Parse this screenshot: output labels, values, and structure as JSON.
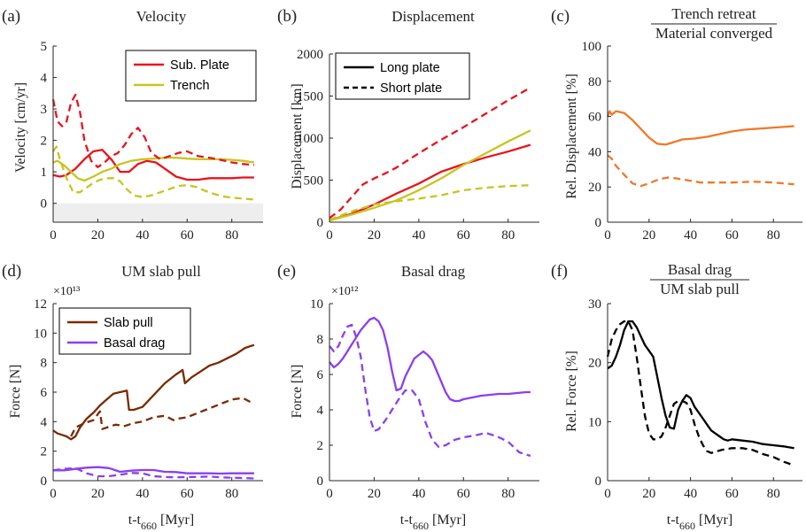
{
  "colors": {
    "red": "#e8141c",
    "yellow": "#c8c420",
    "orange": "#f07828",
    "brown": "#7a2a00",
    "purple": "#8a3ff0",
    "black": "#000000",
    "axis": "#262626",
    "shade": "#eeeeee"
  },
  "shared": {
    "xlabel_main": "t-t",
    "xlabel_sub": "660",
    "xlabel_unit": " [Myr]"
  },
  "chart_data": [
    {
      "panel": "(a)",
      "type": "line",
      "title": "Velocity",
      "ylabel": "Velocity [cm/yr]",
      "xlim": [
        0,
        94
      ],
      "ylim": [
        -0.6,
        5
      ],
      "xticks": [
        0,
        20,
        40,
        60,
        80
      ],
      "yticks": [
        0,
        1,
        2,
        3,
        4,
        5
      ],
      "shaded_region": [
        -0.6,
        0
      ],
      "legend": {
        "position": "top-right",
        "entries": [
          {
            "label": "Sub. Plate",
            "color": "red",
            "dash": "solid"
          },
          {
            "label": "Trench",
            "color": "yellow",
            "dash": "solid"
          }
        ]
      },
      "series": [
        {
          "color": "red",
          "dash": "solid",
          "x": [
            0,
            3,
            6,
            10,
            14,
            18,
            22,
            26,
            30,
            34,
            38,
            42,
            46,
            50,
            55,
            60,
            65,
            70,
            75,
            80,
            85,
            90
          ],
          "y": [
            0.9,
            0.85,
            0.9,
            1.1,
            1.4,
            1.65,
            1.7,
            1.4,
            1.0,
            1.0,
            1.25,
            1.35,
            1.3,
            1.1,
            0.85,
            0.75,
            0.75,
            0.8,
            0.8,
            0.8,
            0.82,
            0.82
          ]
        },
        {
          "color": "yellow",
          "dash": "solid",
          "x": [
            0,
            2,
            5,
            8,
            11,
            14,
            18,
            22,
            26,
            30,
            35,
            40,
            45,
            50,
            55,
            60,
            65,
            70,
            75,
            80,
            85,
            90
          ],
          "y": [
            1.3,
            1.35,
            1.2,
            1.0,
            0.8,
            0.72,
            0.85,
            1.0,
            1.1,
            1.25,
            1.35,
            1.4,
            1.42,
            1.45,
            1.45,
            1.42,
            1.4,
            1.4,
            1.4,
            1.38,
            1.35,
            1.3
          ]
        },
        {
          "color": "red",
          "dash": "dashed",
          "x": [
            0,
            2,
            4,
            6,
            8,
            10,
            12,
            14,
            17,
            20,
            23,
            26,
            29,
            32,
            35,
            38,
            41,
            44,
            48,
            52,
            56,
            60,
            65,
            70,
            75,
            80,
            85,
            90
          ],
          "y": [
            3.3,
            2.6,
            2.45,
            2.6,
            3.2,
            3.45,
            2.9,
            2.0,
            1.35,
            1.15,
            1.3,
            1.5,
            1.6,
            1.85,
            2.2,
            2.4,
            2.1,
            1.6,
            1.4,
            1.5,
            1.6,
            1.65,
            1.5,
            1.45,
            1.38,
            1.3,
            1.25,
            1.22
          ]
        },
        {
          "color": "yellow",
          "dash": "dashed",
          "x": [
            0,
            1.5,
            3,
            6,
            9,
            12,
            15,
            18,
            21,
            24,
            27,
            30,
            33,
            36,
            40,
            44,
            48,
            52,
            56,
            60,
            64,
            68,
            72,
            76,
            80,
            85,
            90
          ],
          "y": [
            1.65,
            1.8,
            1.4,
            0.8,
            0.35,
            0.35,
            0.5,
            0.65,
            0.75,
            0.8,
            0.8,
            0.7,
            0.45,
            0.25,
            0.2,
            0.25,
            0.35,
            0.45,
            0.55,
            0.58,
            0.52,
            0.4,
            0.3,
            0.22,
            0.18,
            0.15,
            0.12
          ]
        }
      ]
    },
    {
      "panel": "(b)",
      "type": "line",
      "title": "Displacement",
      "ylabel": "Displacement [km]",
      "xlim": [
        0,
        94
      ],
      "ylim": [
        0,
        2000
      ],
      "xticks": [
        0,
        20,
        40,
        60,
        80
      ],
      "yticks": [
        0,
        500,
        1000,
        1500,
        2000
      ],
      "legend": {
        "position": "top-left",
        "entries": [
          {
            "label": "Long plate",
            "color": "black",
            "dash": "solid"
          },
          {
            "label": "Short plate",
            "color": "black",
            "dash": "dashed"
          }
        ]
      },
      "series": [
        {
          "color": "red",
          "dash": "solid",
          "x": [
            0,
            10,
            20,
            30,
            40,
            50,
            60,
            70,
            80,
            90
          ],
          "y": [
            20,
            100,
            210,
            340,
            460,
            600,
            690,
            770,
            840,
            920
          ]
        },
        {
          "color": "yellow",
          "dash": "solid",
          "x": [
            0,
            10,
            20,
            30,
            40,
            50,
            60,
            70,
            80,
            90
          ],
          "y": [
            20,
            90,
            170,
            260,
            380,
            520,
            680,
            820,
            960,
            1090
          ]
        },
        {
          "color": "red",
          "dash": "dashed",
          "x": [
            0,
            5,
            10,
            15,
            20,
            25,
            30,
            40,
            50,
            60,
            70,
            80,
            90
          ],
          "y": [
            50,
            150,
            300,
            450,
            520,
            580,
            650,
            820,
            980,
            1130,
            1290,
            1450,
            1600
          ]
        },
        {
          "color": "yellow",
          "dash": "dashed",
          "x": [
            0,
            5,
            10,
            15,
            20,
            30,
            40,
            50,
            60,
            70,
            80,
            90
          ],
          "y": [
            30,
            80,
            130,
            170,
            210,
            250,
            280,
            320,
            380,
            410,
            430,
            440
          ]
        }
      ]
    },
    {
      "panel": "(c)",
      "type": "line",
      "title_num": "Trench retreat",
      "title_den": "Material converged",
      "ylabel": "Rel. Displacement [%]",
      "xlim": [
        0,
        94
      ],
      "ylim": [
        0,
        100
      ],
      "xticks": [
        0,
        20,
        40,
        60,
        80
      ],
      "yticks": [
        0,
        20,
        40,
        60,
        80,
        100
      ],
      "series": [
        {
          "color": "orange",
          "dash": "solid",
          "x": [
            0,
            1,
            2,
            4,
            8,
            12,
            16,
            20,
            24,
            28,
            32,
            36,
            42,
            48,
            54,
            60,
            66,
            72,
            78,
            84,
            90
          ],
          "y": [
            60,
            63,
            61,
            63,
            62,
            58,
            53,
            48,
            44.5,
            44,
            45.5,
            47,
            47.5,
            48.5,
            50,
            51.5,
            52.5,
            53,
            53.5,
            54,
            54.5
          ]
        },
        {
          "color": "orange",
          "dash": "dashed",
          "x": [
            0,
            2,
            4,
            8,
            12,
            16,
            20,
            25,
            30,
            35,
            40,
            45,
            50,
            60,
            70,
            80,
            90
          ],
          "y": [
            38,
            36,
            32,
            27,
            22,
            20.5,
            22,
            24.5,
            25.5,
            24.5,
            23.5,
            22.5,
            22.5,
            22.5,
            23,
            22.5,
            21.5
          ]
        }
      ]
    },
    {
      "panel": "(d)",
      "type": "line",
      "title": "UM slab pull",
      "scale_label": "×10¹³",
      "ylabel": "Force [N]",
      "xlim": [
        0,
        94
      ],
      "ylim": [
        0,
        12
      ],
      "xticks": [
        0,
        20,
        40,
        60,
        80
      ],
      "yticks": [
        0,
        2,
        4,
        6,
        8,
        10,
        12
      ],
      "legend": {
        "position": "top-left",
        "entries": [
          {
            "label": "Slab pull",
            "color": "brown",
            "dash": "solid"
          },
          {
            "label": "Basal drag",
            "color": "purple",
            "dash": "solid"
          }
        ]
      },
      "series": [
        {
          "color": "brown",
          "dash": "solid",
          "x": [
            0,
            2,
            4,
            6,
            8,
            10,
            12,
            15,
            18,
            21,
            24,
            27,
            30,
            33,
            34,
            36,
            40,
            45,
            50,
            55,
            58,
            59,
            62,
            66,
            70,
            74,
            78,
            82,
            86,
            90
          ],
          "y": [
            3.4,
            3.2,
            3.1,
            3.0,
            2.8,
            3.0,
            3.6,
            4.2,
            4.6,
            5.1,
            5.5,
            5.9,
            6.0,
            6.1,
            4.8,
            4.8,
            5.0,
            5.8,
            6.6,
            7.2,
            7.5,
            6.6,
            7.0,
            7.4,
            7.8,
            8.0,
            8.3,
            8.6,
            9.0,
            9.2
          ]
        },
        {
          "color": "brown",
          "dash": "dashed",
          "x": [
            8,
            10,
            14,
            18,
            21,
            22,
            24,
            28,
            32,
            36,
            40,
            45,
            50,
            54,
            56,
            60,
            65,
            70,
            75,
            80,
            85,
            90
          ],
          "y": [
            3.0,
            3.6,
            3.9,
            4.1,
            4.7,
            3.5,
            3.6,
            3.8,
            3.7,
            3.9,
            4.0,
            4.3,
            4.4,
            4.1,
            4.2,
            4.3,
            4.6,
            4.9,
            5.2,
            5.5,
            5.6,
            5.2
          ]
        },
        {
          "color": "purple",
          "dash": "solid",
          "x": [
            0,
            5,
            10,
            15,
            20,
            25,
            30,
            35,
            40,
            45,
            50,
            55,
            60,
            65,
            70,
            75,
            80,
            85,
            90
          ],
          "y": [
            0.7,
            0.7,
            0.8,
            0.88,
            0.92,
            0.85,
            0.6,
            0.68,
            0.72,
            0.72,
            0.6,
            0.58,
            0.5,
            0.5,
            0.5,
            0.48,
            0.5,
            0.5,
            0.5
          ]
        },
        {
          "color": "purple",
          "dash": "dashed",
          "x": [
            0,
            5,
            10,
            15,
            20,
            25,
            30,
            35,
            40,
            45,
            50,
            55,
            60,
            65,
            70,
            75,
            80,
            85,
            90
          ],
          "y": [
            0.7,
            0.8,
            0.85,
            0.5,
            0.3,
            0.3,
            0.4,
            0.52,
            0.5,
            0.3,
            0.25,
            0.22,
            0.25,
            0.25,
            0.28,
            0.22,
            0.2,
            0.18,
            0.15
          ]
        }
      ]
    },
    {
      "panel": "(e)",
      "type": "line",
      "title": "Basal drag",
      "scale_label": "×10¹²",
      "ylabel": "Force [N]",
      "xlim": [
        0,
        94
      ],
      "ylim": [
        0,
        10
      ],
      "xticks": [
        0,
        20,
        40,
        60,
        80
      ],
      "yticks": [
        0,
        2,
        4,
        6,
        8,
        10
      ],
      "series": [
        {
          "color": "purple",
          "dash": "solid",
          "x": [
            0,
            2,
            4,
            6,
            8,
            10,
            12,
            14,
            16,
            18,
            20,
            22,
            24,
            26,
            28,
            30,
            32,
            34,
            36,
            38,
            40,
            42,
            44,
            46,
            48,
            50,
            52,
            54,
            56,
            58,
            60,
            64,
            68,
            72,
            76,
            80,
            84,
            88,
            90
          ],
          "y": [
            6.7,
            6.4,
            6.6,
            6.9,
            7.3,
            7.7,
            8.1,
            8.5,
            8.8,
            9.1,
            9.2,
            9.0,
            8.5,
            7.5,
            6.2,
            5.1,
            5.2,
            5.9,
            6.4,
            6.9,
            7.1,
            7.3,
            7.1,
            6.8,
            6.2,
            5.6,
            5.0,
            4.6,
            4.5,
            4.5,
            4.6,
            4.7,
            4.8,
            4.85,
            4.9,
            4.9,
            4.95,
            5.0,
            5.0
          ]
        },
        {
          "color": "purple",
          "dash": "dashed",
          "x": [
            0,
            2,
            4,
            6,
            8,
            10,
            12,
            14,
            16,
            18,
            20,
            22,
            25,
            28,
            31,
            34,
            37,
            40,
            43,
            46,
            49,
            52,
            56,
            60,
            65,
            70,
            75,
            80,
            85,
            90
          ],
          "y": [
            7.6,
            7.3,
            7.6,
            8.2,
            8.7,
            8.8,
            8.1,
            7.0,
            5.2,
            3.6,
            2.8,
            2.9,
            3.4,
            4.0,
            4.6,
            5.1,
            5.1,
            4.6,
            3.3,
            2.3,
            1.9,
            2.0,
            2.3,
            2.45,
            2.55,
            2.7,
            2.5,
            2.2,
            1.6,
            1.4
          ]
        }
      ]
    },
    {
      "panel": "(f)",
      "type": "line",
      "title_num": "Basal drag",
      "title_den": "UM slab pull",
      "ylabel": "Rel. Force [%]",
      "xlim": [
        0,
        94
      ],
      "ylim": [
        0,
        30
      ],
      "xticks": [
        0,
        20,
        40,
        60,
        80
      ],
      "yticks": [
        0,
        10,
        20,
        30
      ],
      "series": [
        {
          "color": "black",
          "dash": "solid",
          "x": [
            0,
            2,
            4,
            6,
            8,
            10,
            12,
            14,
            16,
            18,
            20,
            22,
            24,
            26,
            28,
            30,
            32,
            34,
            36,
            38,
            40,
            42,
            44,
            46,
            48,
            50,
            52,
            54,
            56,
            58,
            60,
            65,
            70,
            75,
            80,
            85,
            90
          ],
          "y": [
            19,
            19.5,
            21,
            23,
            25.5,
            27,
            27,
            26,
            24.5,
            23,
            22,
            21,
            17.5,
            14,
            11,
            9,
            8.8,
            12,
            13.5,
            14.5,
            14,
            12.5,
            11.5,
            10.5,
            9.5,
            8.5,
            8,
            7.5,
            7,
            6.8,
            7,
            6.8,
            6.6,
            6.2,
            6,
            5.8,
            5.5
          ]
        },
        {
          "color": "black",
          "dash": "dashed",
          "x": [
            0,
            2,
            4,
            6,
            8,
            10,
            12,
            14,
            16,
            18,
            20,
            22,
            24,
            26,
            28,
            30,
            32,
            34,
            36,
            38,
            40,
            42,
            44,
            46,
            48,
            50,
            55,
            60,
            65,
            70,
            75,
            80,
            85,
            90
          ],
          "y": [
            21,
            24,
            25.5,
            26.5,
            27,
            27,
            25.5,
            21,
            16,
            11,
            8,
            7,
            7,
            7.5,
            9,
            11,
            13,
            13.5,
            13.5,
            13.2,
            12,
            9.5,
            7.5,
            6,
            5,
            4.7,
            5.2,
            5.5,
            5.5,
            5.2,
            4.5,
            4,
            3.2,
            2.6
          ]
        }
      ]
    }
  ]
}
